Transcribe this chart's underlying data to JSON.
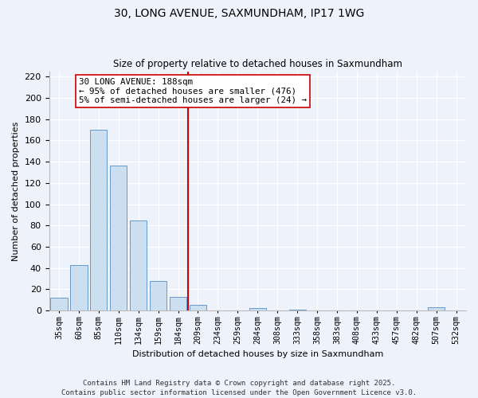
{
  "title_line1": "30, LONG AVENUE, SAXMUNDHAM, IP17 1WG",
  "title_line2": "Size of property relative to detached houses in Saxmundham",
  "xlabel": "Distribution of detached houses by size in Saxmundham",
  "ylabel": "Number of detached properties",
  "categories": [
    "35sqm",
    "60sqm",
    "85sqm",
    "110sqm",
    "134sqm",
    "159sqm",
    "184sqm",
    "209sqm",
    "234sqm",
    "259sqm",
    "284sqm",
    "308sqm",
    "333sqm",
    "358sqm",
    "383sqm",
    "408sqm",
    "433sqm",
    "457sqm",
    "482sqm",
    "507sqm",
    "532sqm"
  ],
  "values": [
    12,
    43,
    170,
    136,
    85,
    28,
    13,
    5,
    0,
    0,
    2,
    0,
    1,
    0,
    0,
    0,
    0,
    0,
    0,
    3,
    0
  ],
  "bar_color": "#ccdff0",
  "bar_edge_color": "#6699cc",
  "vline_color": "#cc0000",
  "annotation_text": "30 LONG AVENUE: 188sqm\n← 95% of detached houses are smaller (476)\n5% of semi-detached houses are larger (24) →",
  "annotation_box_color": "#ffffff",
  "annotation_box_edge": "#cc0000",
  "ylim": [
    0,
    225
  ],
  "yticks": [
    0,
    20,
    40,
    60,
    80,
    100,
    120,
    140,
    160,
    180,
    200,
    220
  ],
  "footer_line1": "Contains HM Land Registry data © Crown copyright and database right 2025.",
  "footer_line2": "Contains public sector information licensed under the Open Government Licence v3.0.",
  "background_color": "#eef2fb"
}
